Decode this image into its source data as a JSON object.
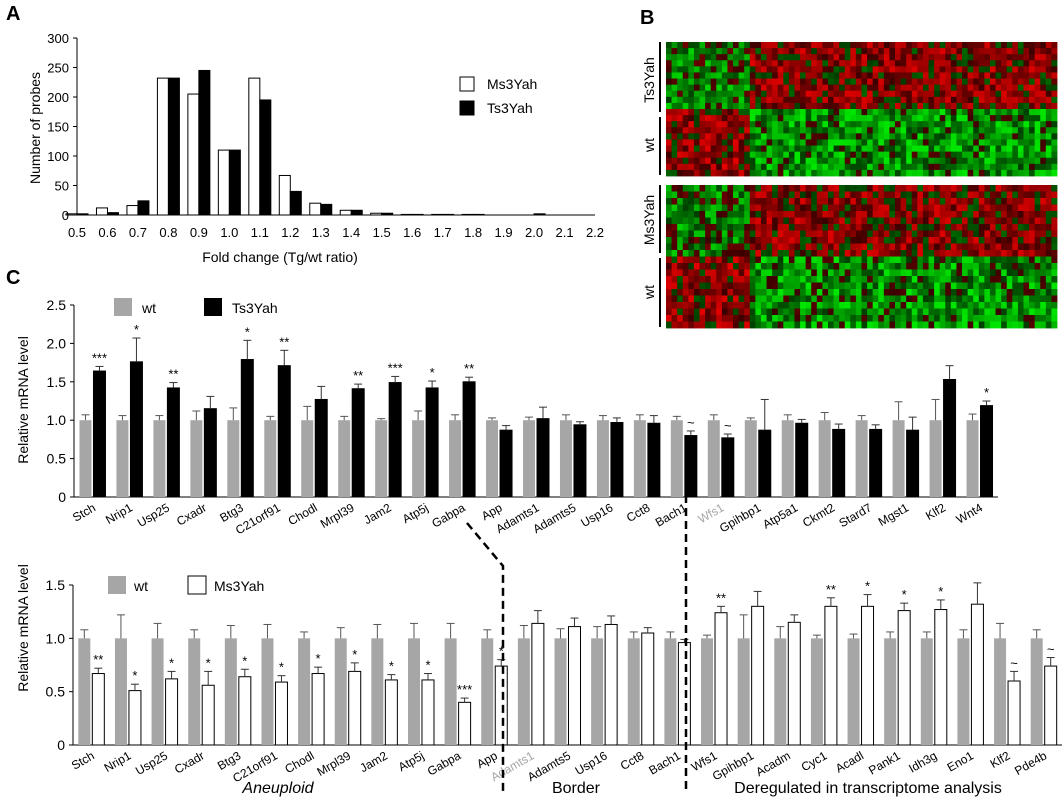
{
  "panel_labels": {
    "a": "A",
    "b": "B",
    "c": "C"
  },
  "colors": {
    "wt": "#a6a6a6",
    "ts": "#000000",
    "ms": "#ffffff",
    "stroke": "#000000"
  },
  "chart_data": [
    {
      "id": "histogram",
      "type": "bar",
      "ylabel": "Number of probes",
      "xlabel": "Fold change (Tg/wt ratio)",
      "ylim": [
        0,
        300
      ],
      "yticks": [
        0,
        50,
        100,
        150,
        200,
        250,
        300
      ],
      "categories": [
        "0.5",
        "0.6",
        "0.7",
        "0.8",
        "0.9",
        "1.0",
        "1.1",
        "1.2",
        "1.3",
        "1.4",
        "1.5",
        "1.6",
        "1.7",
        "1.8",
        "1.9",
        "2.0",
        "2.1",
        "2.2"
      ],
      "series": [
        {
          "name": "Ms3Yah",
          "color": "#ffffff",
          "values": [
            2,
            12,
            16,
            232,
            205,
            110,
            232,
            67,
            20,
            8,
            3,
            1,
            1,
            1,
            0,
            0,
            0,
            0
          ]
        },
        {
          "name": "Ts3Yah",
          "color": "#000000",
          "values": [
            2,
            4,
            24,
            232,
            245,
            110,
            195,
            40,
            18,
            8,
            3,
            1,
            1,
            1,
            0,
            2,
            0,
            0
          ]
        }
      ],
      "legend_position": "right"
    },
    {
      "id": "heatmap",
      "type": "heatmap",
      "blocks": [
        {
          "groups": [
            "Ts3Yah",
            "wt"
          ]
        },
        {
          "groups": [
            "Ms3Yah",
            "wt"
          ]
        }
      ],
      "colors": [
        "#00cc00",
        "#000000",
        "#dd0000"
      ]
    },
    {
      "id": "qpcr-ts3yah",
      "type": "bar",
      "ylabel": "Relative mRNA level",
      "ylim": [
        0,
        2.5
      ],
      "yticks": [
        "0",
        "0.5",
        "1.0",
        "1.5",
        "2.0",
        "2.5"
      ],
      "categories": [
        "Stch",
        "Nrip1",
        "Usp25",
        "Cxadr",
        "Btg3",
        "C21orf91",
        "Chodl",
        "Mrpl39",
        "Jam2",
        "Atp5j",
        "Gabpa",
        "App",
        "Adamts1",
        "Adamts5",
        "Usp16",
        "Cct8",
        "Bach1",
        "Wfs1",
        "Gpihbp1",
        "Atp5a1",
        "Ckmt2",
        "Stard7",
        "Mgst1",
        "Klf2",
        "Wnt4"
      ],
      "grey_category": "Wfs1",
      "series": [
        {
          "name": "wt",
          "color": "#a6a6a6",
          "values": [
            1.0,
            1.0,
            1.0,
            1.0,
            1.0,
            1.0,
            1.0,
            1.0,
            1.0,
            1.0,
            1.0,
            1.0,
            1.0,
            1.0,
            1.0,
            1.0,
            1.0,
            1.0,
            1.0,
            1.0,
            1.0,
            1.0,
            1.0,
            1.0,
            1.0
          ],
          "errors": [
            0.07,
            0.06,
            0.06,
            0.12,
            0.16,
            0.05,
            0.18,
            0.05,
            0.02,
            0.12,
            0.07,
            0.03,
            0.04,
            0.07,
            0.06,
            0.07,
            0.05,
            0.07,
            0.03,
            0.07,
            0.1,
            0.06,
            0.24,
            0.27,
            0.08
          ]
        },
        {
          "name": "Ts3Yah",
          "color": "#000000",
          "values": [
            1.64,
            1.76,
            1.42,
            1.15,
            1.79,
            1.71,
            1.27,
            1.41,
            1.49,
            1.42,
            1.5,
            0.87,
            1.02,
            0.94,
            0.97,
            0.96,
            0.8,
            0.77,
            0.87,
            0.96,
            0.88,
            0.88,
            0.87,
            1.53,
            1.19
          ]
        },
        {
          "name": "Ts3Yah-err",
          "values": [
            0.06,
            0.31,
            0.07,
            0.16,
            0.25,
            0.2,
            0.17,
            0.06,
            0.08,
            0.09,
            0.06,
            0.06,
            0.15,
            0.04,
            0.06,
            0.1,
            0.06,
            0.05,
            0.4,
            0.05,
            0.07,
            0.06,
            0.17,
            0.18,
            0.06
          ]
        }
      ],
      "significance": [
        "***",
        "*",
        "**",
        "",
        "*",
        "**",
        "",
        "**",
        "***",
        "*",
        "**",
        "",
        "",
        "",
        "",
        "",
        "~",
        "~",
        "",
        "",
        "",
        "",
        "",
        "",
        "*"
      ]
    },
    {
      "id": "qpcr-ms3yah",
      "type": "bar",
      "ylabel": "Relative mRNA level",
      "ylim": [
        0,
        1.5
      ],
      "yticks": [
        "0",
        "0.5",
        "1.0",
        "1.5"
      ],
      "categories": [
        "Stch",
        "Nrip1",
        "Usp25",
        "Cxadr",
        "Btg3",
        "C21orf91",
        "Chodl",
        "Mrpl39",
        "Jam2",
        "Atp5j",
        "Gabpa",
        "App",
        "Adamts1",
        "Adamts5",
        "Usp16",
        "Cct8",
        "Bach1",
        "Wfs1",
        "Gpihbp1",
        "Acadm",
        "Cyc1",
        "Acadl",
        "Pank1",
        "Idh3g",
        "Eno1",
        "Klf2",
        "Pde4b"
      ],
      "grey_category": "Adamts1",
      "series": [
        {
          "name": "wt",
          "color": "#a6a6a6",
          "values": [
            1.0,
            1.0,
            1.0,
            1.0,
            1.0,
            1.0,
            1.0,
            1.0,
            1.0,
            1.0,
            1.0,
            1.0,
            1.0,
            1.0,
            1.0,
            1.0,
            1.0,
            1.0,
            1.0,
            1.0,
            1.0,
            1.0,
            1.0,
            1.0,
            1.0,
            1.0,
            1.0
          ],
          "errors": [
            0.08,
            0.22,
            0.14,
            0.08,
            0.12,
            0.13,
            0.06,
            0.1,
            0.13,
            0.14,
            0.14,
            0.08,
            0.12,
            0.09,
            0.11,
            0.06,
            0.06,
            0.03,
            0.22,
            0.11,
            0.03,
            0.04,
            0.06,
            0.06,
            0.08,
            0.14,
            0.08
          ]
        },
        {
          "name": "Ms3Yah",
          "color": "#ffffff",
          "values": [
            0.67,
            0.51,
            0.62,
            0.56,
            0.64,
            0.59,
            0.67,
            0.69,
            0.61,
            0.61,
            0.4,
            0.74,
            1.14,
            1.11,
            1.13,
            1.05,
            0.96,
            1.24,
            1.3,
            1.15,
            1.3,
            1.3,
            1.26,
            1.27,
            1.32,
            0.6,
            0.74
          ]
        },
        {
          "name": "Ms3Yah-err",
          "values": [
            0.05,
            0.06,
            0.07,
            0.13,
            0.07,
            0.06,
            0.06,
            0.08,
            0.05,
            0.06,
            0.04,
            0.06,
            0.12,
            0.08,
            0.08,
            0.05,
            0.03,
            0.06,
            0.14,
            0.07,
            0.08,
            0.11,
            0.07,
            0.09,
            0.2,
            0.09,
            0.08
          ]
        }
      ],
      "significance": [
        "**",
        "*",
        "*",
        "*",
        "*",
        "*",
        "*",
        "*",
        "*",
        "*",
        "***",
        "*",
        "",
        "",
        "",
        "",
        "",
        "**",
        "",
        "",
        "**",
        "*",
        "*",
        "*",
        "",
        "~",
        "~"
      ],
      "group_labels": [
        "Aneuploid",
        "Border",
        "Deregulated in transcriptome analysis"
      ]
    }
  ]
}
